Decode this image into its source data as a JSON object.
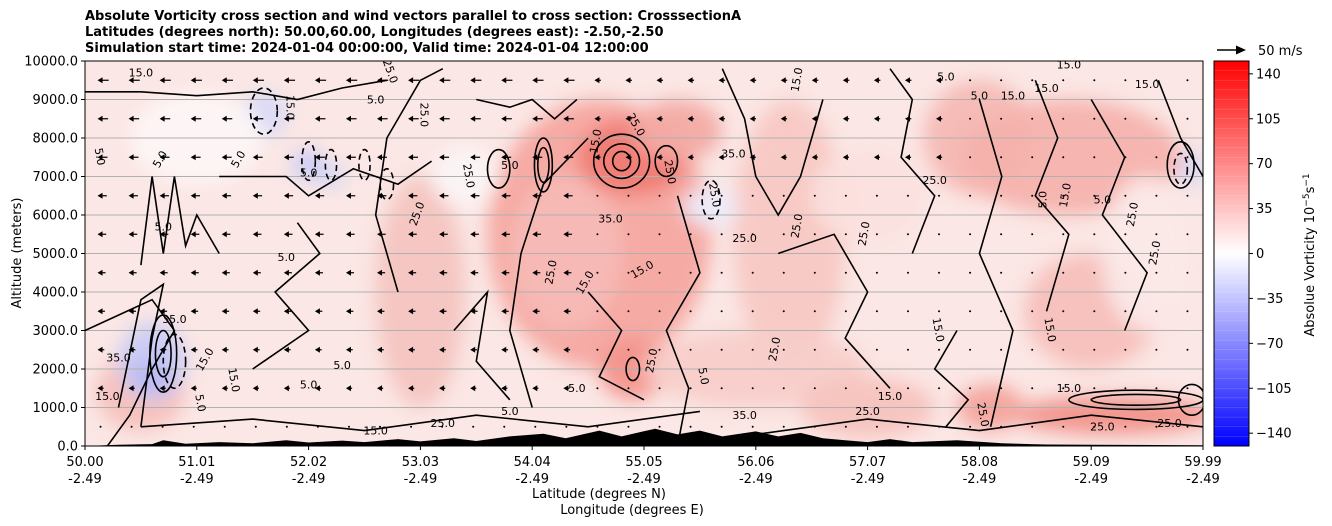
{
  "chart_data": {
    "type": "contour",
    "title_lines": [
      "Absolute Vorticity cross section and wind vectors parallel to cross section: CrosssectionA",
      "Latitudes (degrees north): 50.00,60.00, Longitudes (degrees east): -2.50,-2.50",
      "Simulation start time: 2024-01-04 00:00:00, Valid time: 2024-01-04 12:00:00"
    ],
    "ylabel": "Altitude (meters)",
    "xlabel_lines": [
      "Latitude (degrees N)",
      "Longitude (degrees E)"
    ],
    "ylim": [
      0,
      10000
    ],
    "y_ticks": [
      "0.0",
      "1000.0",
      "2000.0",
      "3000.0",
      "4000.0",
      "5000.0",
      "6000.0",
      "7000.0",
      "8000.0",
      "9000.0",
      "10000.0"
    ],
    "x_ticks_lat": [
      "50.00",
      "51.01",
      "52.02",
      "53.03",
      "54.04",
      "55.05",
      "56.06",
      "57.07",
      "58.08",
      "59.09",
      "59.99"
    ],
    "x_ticks_lon": [
      "-2.49",
      "-2.49",
      "-2.49",
      "-2.49",
      "-2.49",
      "-2.49",
      "-2.49",
      "-2.49",
      "-2.49",
      "-2.49",
      "-2.49"
    ],
    "grid": "horizontal",
    "colorbar": {
      "label": "Absolue Vorticity 10",
      "label_exp": "−5",
      "label_unit": "s",
      "label_unit_exp": "−1",
      "ticks": [
        "140",
        "105",
        "70",
        "35",
        "0",
        "−35",
        "−70",
        "−105",
        "−140"
      ],
      "range": [
        -150,
        150
      ],
      "colormap": "bwr"
    },
    "quiver_key": "50 m/s",
    "contour_labels": [
      "5.0",
      "15.0",
      "25.0",
      "35.0"
    ]
  }
}
